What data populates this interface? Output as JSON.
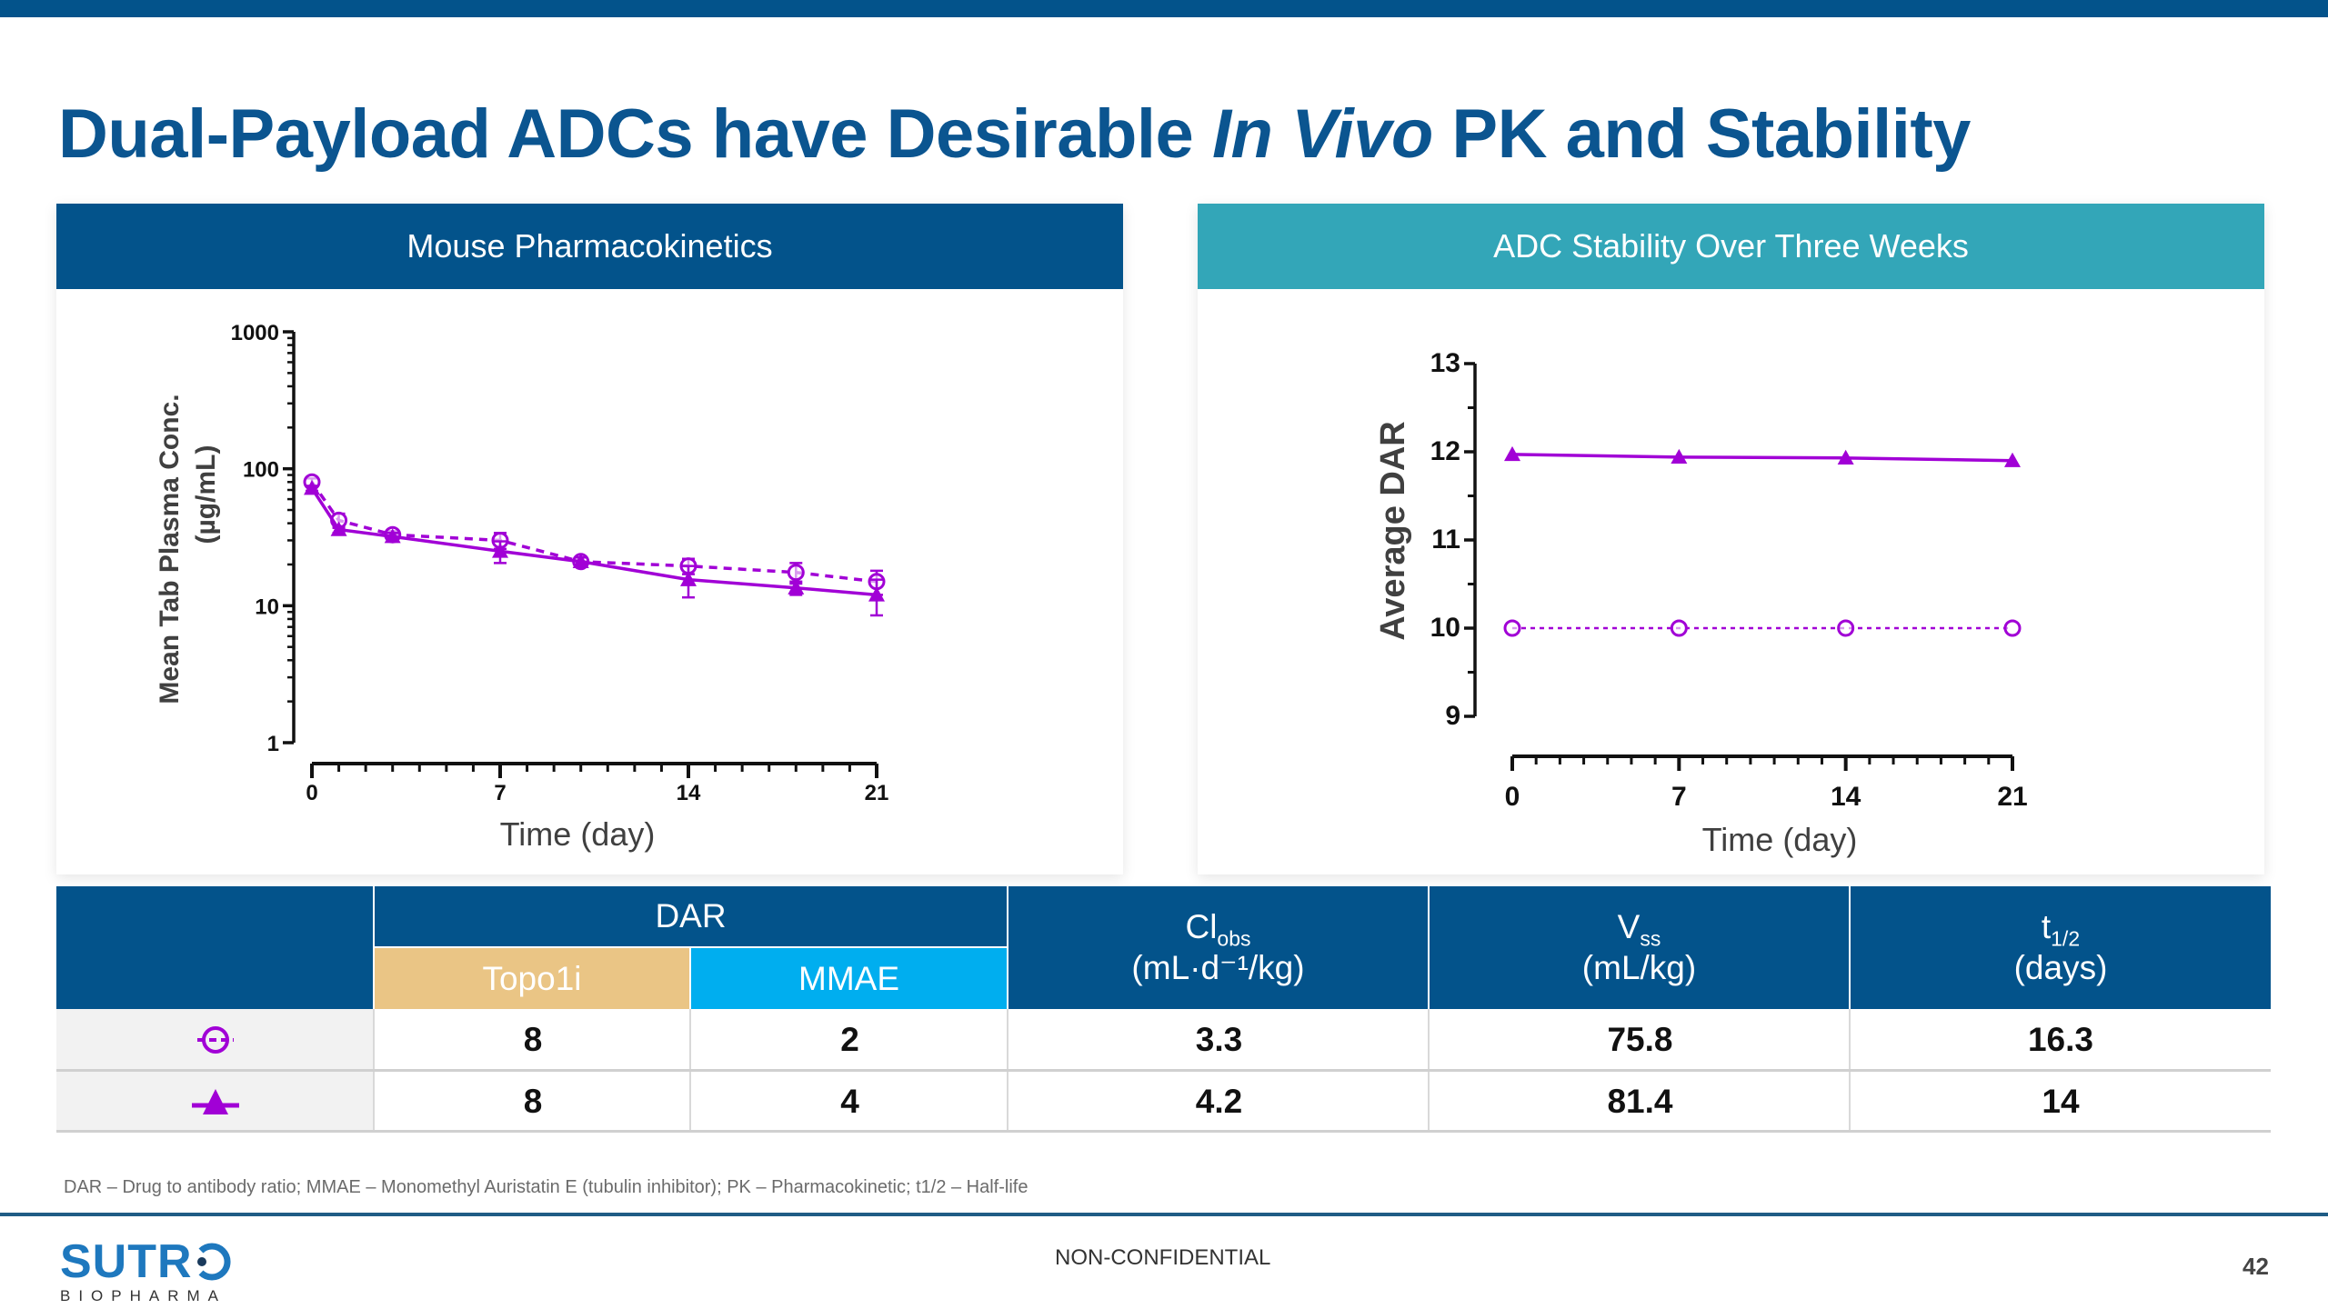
{
  "slide": {
    "title_part1": "Dual-Payload ADCs have Desirable ",
    "title_italic": "In Vivo",
    "title_part2": " PK and Stability",
    "footnote": "DAR – Drug to antibody ratio; MMAE – Monomethyl Auristatin E (tubulin inhibitor); PK – Pharmacokinetic; t1/2 – Half-life",
    "confidentiality": "NON-CONFIDENTIAL",
    "page_number": "42",
    "logo_main": "SUTR",
    "logo_sub": "BIOPHARMA"
  },
  "colors": {
    "brand_blue": "#03538B",
    "teal": "#33A6B8",
    "topo1i": "#EAC585",
    "mmae": "#00AEEF",
    "series_purple": "#A100D6"
  },
  "panels": {
    "left_title": "Mouse Pharmacokinetics",
    "right_title": "ADC Stability Over Three Weeks"
  },
  "chart_data": [
    {
      "type": "line",
      "title": "Mouse Pharmacokinetics",
      "xlabel": "Time (day)",
      "ylabel": "Mean Tab Plasma Conc.",
      "ylabel2": "(µg/mL)",
      "yscale": "log",
      "xlim": [
        0,
        21
      ],
      "ylim": [
        1,
        1000
      ],
      "xticks": [
        0,
        7,
        14,
        21
      ],
      "xtick_labels": [
        "0",
        "7",
        "14",
        "21"
      ],
      "yticks": [
        1,
        10,
        100,
        1000
      ],
      "ytick_labels": [
        "1",
        "10",
        "100",
        "1000"
      ],
      "grid": false,
      "series": [
        {
          "name": "Topo1i 8 + MMAE 2",
          "marker": "open-circle",
          "line": "dashed",
          "x": [
            0,
            1,
            3,
            7,
            10,
            14,
            18,
            21
          ],
          "values": [
            80,
            42,
            33,
            30,
            21,
            19.5,
            17.5,
            15
          ],
          "err": [
            5,
            5,
            2,
            4,
            1.5,
            2.5,
            3,
            3
          ]
        },
        {
          "name": "Topo1i 8 + MMAE 4",
          "marker": "filled-triangle",
          "line": "solid",
          "x": [
            0,
            1,
            3,
            7,
            10,
            14,
            18,
            21
          ],
          "values": [
            72,
            36,
            32,
            25,
            21,
            15.5,
            13.5,
            12
          ],
          "err": [
            3,
            2,
            2,
            4.5,
            1.5,
            4,
            1.5,
            3.5
          ]
        }
      ]
    },
    {
      "type": "line",
      "title": "ADC Stability Over Three Weeks",
      "xlabel": "Time (day)",
      "ylabel": "Average DAR",
      "xlim": [
        0,
        21
      ],
      "ylim": [
        9,
        13
      ],
      "xticks": [
        0,
        7,
        14,
        21
      ],
      "xtick_labels": [
        "0",
        "7",
        "14",
        "21"
      ],
      "yticks": [
        9,
        10,
        11,
        12,
        13
      ],
      "ytick_labels": [
        "9",
        "10",
        "11",
        "12",
        "13"
      ],
      "grid": false,
      "series": [
        {
          "name": "Topo1i 8 + MMAE 2",
          "marker": "open-circle",
          "line": "dotted",
          "x": [
            0,
            7,
            14,
            21
          ],
          "values": [
            10.0,
            10.0,
            10.0,
            10.0
          ]
        },
        {
          "name": "Topo1i 8 + MMAE 4",
          "marker": "filled-triangle",
          "line": "solid",
          "x": [
            0,
            7,
            14,
            21
          ],
          "values": [
            11.97,
            11.94,
            11.93,
            11.9
          ]
        }
      ]
    }
  ],
  "table": {
    "dar_header": "DAR",
    "topo1i_header": "Topo1i",
    "mmae_header": "MMAE",
    "cl_main": "Cl",
    "cl_sub": "obs",
    "cl_units": "(mL·d⁻¹/kg)",
    "vss_main": "V",
    "vss_sub": "ss",
    "vss_units": "(mL/kg)",
    "t_main": "t",
    "t_sub": "1/2",
    "t_units": "(days)",
    "rows": [
      {
        "symbol": "open-circle",
        "topo1i": "8",
        "mmae": "2",
        "cl": "3.3",
        "vss": "75.8",
        "t_half": "16.3"
      },
      {
        "symbol": "filled-triangle",
        "topo1i": "8",
        "mmae": "4",
        "cl": "4.2",
        "vss": "81.4",
        "t_half": "14"
      }
    ]
  }
}
